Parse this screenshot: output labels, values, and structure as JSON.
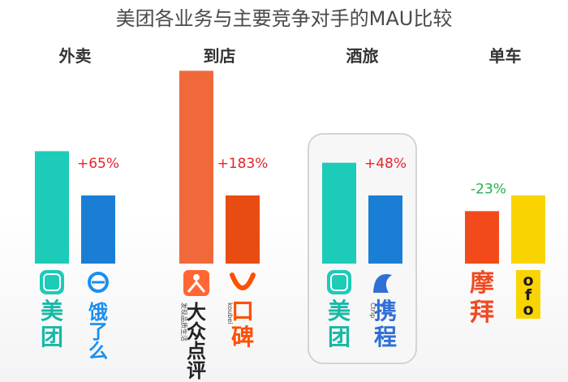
{
  "chart_data": {
    "type": "bar",
    "title": "美团各业务与主要竞争对手的MAU比较",
    "groups": [
      {
        "category": "外卖",
        "change_label": "+65%",
        "change_color": "#e8222a",
        "highlight": false,
        "bars": [
          {
            "brand": "美团",
            "value": 1.65,
            "color": "#1ccbb8",
            "logo_icon": "meituan-logo-icon",
            "logo_text": [
              "美",
              "团"
            ],
            "logo_color": "#1ccbb8"
          },
          {
            "brand": "饿了么",
            "value": 1.0,
            "color": "#1a7fd4",
            "logo_icon": "eleme-logo-icon",
            "logo_text": [
              "饿",
              "了",
              "么"
            ],
            "logo_color": "#1a8ff0"
          }
        ]
      },
      {
        "category": "到店",
        "change_label": "+183%",
        "change_color": "#e8222a",
        "highlight": false,
        "bars": [
          {
            "brand": "大众点评",
            "value": 2.83,
            "color": "#f0693a",
            "logo_icon": "dianping-logo-icon",
            "logo_text": [
              "大",
              "众",
              "点",
              "评"
            ],
            "logo_sub": "发现品质生活",
            "logo_color": "#ff6633"
          },
          {
            "brand": "口碑",
            "value": 1.0,
            "color": "#e84c12",
            "logo_icon": "koubei-logo-icon",
            "logo_text": [
              "口",
              "碑"
            ],
            "logo_sub": "koubei",
            "logo_color": "#ff5000"
          }
        ]
      },
      {
        "category": "酒旅",
        "change_label": "+48%",
        "change_color": "#e8222a",
        "highlight": true,
        "bars": [
          {
            "brand": "美团",
            "value": 1.48,
            "color": "#1ccbb8",
            "logo_icon": "meituan-logo-icon",
            "logo_text": [
              "美",
              "团"
            ],
            "logo_color": "#1ccbb8"
          },
          {
            "brand": "携程",
            "value": 1.0,
            "color": "#1a7fd4",
            "logo_icon": "ctrip-logo-icon",
            "logo_text": [
              "携",
              "程"
            ],
            "logo_sub": "Ctrip",
            "logo_color": "#2f6fd6"
          }
        ]
      },
      {
        "category": "单车",
        "change_label": "-23%",
        "change_color": "#22b14c",
        "highlight": false,
        "bars": [
          {
            "brand": "摩拜",
            "value": 0.77,
            "color": "#f34a1c",
            "logo_icon": "mobike-logo-icon",
            "logo_text": [
              "摩",
              "拜"
            ],
            "logo_color": "#f04a23"
          },
          {
            "brand": "ofo",
            "value": 1.0,
            "color": "#f9d400",
            "logo_icon": "ofo-logo-icon",
            "logo_text": [
              "o",
              "f",
              "o"
            ],
            "logo_color": "#1a1a1a"
          }
        ]
      }
    ]
  }
}
